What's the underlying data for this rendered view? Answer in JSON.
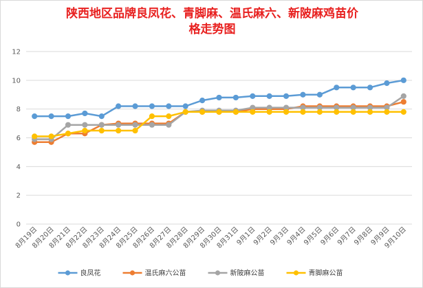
{
  "chart_data": {
    "type": "line",
    "title_lines": [
      "陕西地区品牌良凤花、青脚麻、温氏麻六、新陂麻鸡苗价",
      "格走势图"
    ],
    "xlabel": "",
    "ylabel": "",
    "ylim": [
      0,
      12
    ],
    "yticks": [
      "0",
      "2",
      "4",
      "6",
      "8",
      "10",
      "12"
    ],
    "categories": [
      "8月19日",
      "8月20日",
      "8月21日",
      "8月22日",
      "8月23日",
      "8月24日",
      "8月25日",
      "8月26日",
      "8月27日",
      "8月28日",
      "8月29日",
      "8月30日",
      "8月31日",
      "9月1日",
      "9月2日",
      "9月3日",
      "9月4日",
      "9月5日",
      "9月6日",
      "9月7日",
      "9月8日",
      "9月9日",
      "9月10日"
    ],
    "grid": true,
    "legend_position": "bottom",
    "series": [
      {
        "name": "良凤花",
        "color": "#5b9bd5",
        "values": [
          7.5,
          7.5,
          7.5,
          7.7,
          7.5,
          8.2,
          8.2,
          8.2,
          8.2,
          8.2,
          8.6,
          8.8,
          8.8,
          8.9,
          8.9,
          8.9,
          9.0,
          9.0,
          9.5,
          9.5,
          9.5,
          9.8,
          10.0
        ]
      },
      {
        "name": "温氏麻六公苗",
        "color": "#ed7d31",
        "values": [
          5.7,
          5.7,
          6.3,
          6.3,
          6.9,
          7.0,
          7.0,
          7.0,
          7.0,
          7.8,
          7.8,
          7.8,
          7.8,
          8.0,
          8.0,
          8.0,
          8.2,
          8.2,
          8.2,
          8.2,
          8.2,
          8.2,
          8.5
        ]
      },
      {
        "name": "新陂麻公苗",
        "color": "#a5a5a5",
        "values": [
          5.9,
          5.9,
          6.9,
          6.9,
          6.9,
          6.9,
          6.9,
          6.9,
          6.9,
          7.8,
          7.9,
          7.9,
          7.9,
          8.1,
          8.1,
          8.1,
          8.1,
          8.1,
          8.1,
          8.1,
          8.1,
          8.1,
          8.9
        ]
      },
      {
        "name": "青脚麻公苗",
        "color": "#ffc000",
        "values": [
          6.1,
          6.1,
          6.3,
          6.5,
          6.5,
          6.5,
          6.5,
          7.5,
          7.5,
          7.8,
          7.8,
          7.8,
          7.8,
          7.8,
          7.8,
          7.8,
          7.8,
          7.8,
          7.8,
          7.8,
          7.8,
          7.8,
          7.8
        ]
      }
    ]
  }
}
